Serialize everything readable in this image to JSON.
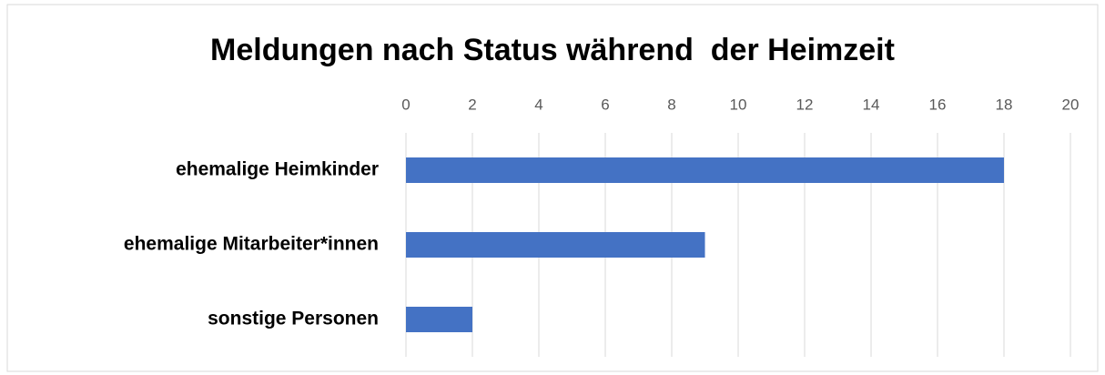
{
  "chart_data": {
    "type": "bar",
    "orientation": "horizontal",
    "title": "Meldungen nach Status während  der Heimzeit",
    "categories": [
      "ehemalige Heimkinder",
      "ehemalige Mitarbeiter*innen",
      "sonstige Personen"
    ],
    "values": [
      18,
      9,
      2
    ],
    "color": "#4472c4",
    "xlim": [
      0,
      20
    ],
    "xticks": [
      0,
      2,
      4,
      6,
      8,
      10,
      12,
      14,
      16,
      18,
      20
    ],
    "grid": true
  }
}
